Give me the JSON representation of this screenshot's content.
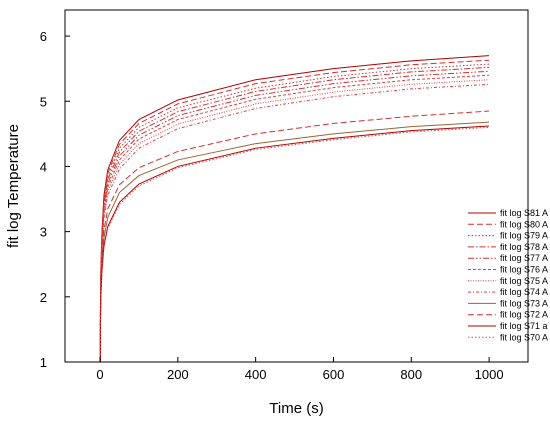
{
  "chart_data": {
    "type": "line",
    "title": "",
    "xlabel": "Time (s)",
    "ylabel": "fit log Temperature",
    "xlim": [
      -90,
      1100
    ],
    "ylim": [
      1,
      6.4
    ],
    "x_ticks": [
      0,
      200,
      400,
      600,
      800,
      1000
    ],
    "y_ticks": [
      1,
      2,
      3,
      4,
      5,
      6
    ],
    "x_tick_labels": [
      "0",
      "200",
      "400",
      "600",
      "800",
      "1000"
    ],
    "y_tick_labels": [
      "1",
      "2",
      "3",
      "4",
      "5",
      "6"
    ],
    "x": [
      1,
      2,
      5,
      10,
      20,
      50,
      100,
      200,
      400,
      600,
      800,
      1000
    ],
    "legend_position": "right",
    "series": [
      {
        "name": "fit log S81 A",
        "color": "#b30000",
        "dash": "solid",
        "values": [
          1.75,
          2.4,
          3.0,
          3.55,
          3.95,
          4.4,
          4.72,
          5.02,
          5.33,
          5.5,
          5.62,
          5.7
        ]
      },
      {
        "name": "fit log S80 A",
        "color": "#cc3333",
        "dash": "dash",
        "values": [
          1.72,
          2.35,
          2.95,
          3.5,
          3.9,
          4.34,
          4.66,
          4.96,
          5.27,
          5.44,
          5.56,
          5.63
        ]
      },
      {
        "name": "fit log S79 A",
        "color": "#cc3333",
        "dash": "dot",
        "values": [
          1.7,
          2.32,
          2.9,
          3.45,
          3.85,
          4.28,
          4.6,
          4.9,
          5.2,
          5.38,
          5.5,
          5.57
        ]
      },
      {
        "name": "fit log S78 A",
        "color": "#cc3333",
        "dash": "dashdot",
        "values": [
          1.68,
          2.3,
          2.87,
          3.4,
          3.8,
          4.22,
          4.54,
          4.84,
          5.15,
          5.33,
          5.45,
          5.52
        ]
      },
      {
        "name": "fit log S77 A",
        "color": "#cc3333",
        "dash": "dashdotdot",
        "values": [
          1.66,
          2.27,
          2.83,
          3.35,
          3.74,
          4.16,
          4.48,
          4.78,
          5.09,
          5.27,
          5.39,
          5.46
        ]
      },
      {
        "name": "fit log S76 A",
        "color": "#dd4444",
        "dash": "shortdash",
        "values": [
          1.64,
          2.24,
          2.79,
          3.3,
          3.68,
          4.1,
          4.42,
          4.72,
          5.03,
          5.21,
          5.33,
          5.4
        ]
      },
      {
        "name": "fit log S75 A",
        "color": "#dd4444",
        "dash": "shortdot",
        "values": [
          1.62,
          2.21,
          2.75,
          3.25,
          3.62,
          4.03,
          4.35,
          4.65,
          4.96,
          5.14,
          5.26,
          5.33
        ]
      },
      {
        "name": "fit log S74 A",
        "color": "#dd4444",
        "dash": "shortdashdot",
        "values": [
          1.6,
          2.18,
          2.71,
          3.2,
          3.56,
          3.96,
          4.28,
          4.58,
          4.89,
          5.07,
          5.19,
          5.26
        ]
      },
      {
        "name": "fit log S73 A",
        "color": "#996633",
        "dash": "solid",
        "values": [
          1.55,
          2.05,
          2.5,
          2.9,
          3.22,
          3.6,
          3.86,
          4.1,
          4.35,
          4.5,
          4.61,
          4.68
        ]
      },
      {
        "name": "fit log S72 A",
        "color": "#cc3333",
        "dash": "dash",
        "values": [
          1.58,
          2.12,
          2.6,
          3.02,
          3.35,
          3.72,
          3.98,
          4.23,
          4.5,
          4.66,
          4.77,
          4.85
        ]
      },
      {
        "name": "fit log S71 a",
        "color": "#b30000",
        "dash": "solid",
        "values": [
          1.5,
          1.98,
          2.4,
          2.78,
          3.08,
          3.45,
          3.73,
          4.0,
          4.28,
          4.43,
          4.55,
          4.62
        ]
      },
      {
        "name": "fit log S70 A",
        "color": "#dd4444",
        "dash": "dot",
        "values": [
          1.49,
          1.96,
          2.38,
          2.75,
          3.05,
          3.42,
          3.7,
          3.98,
          4.26,
          4.41,
          4.53,
          4.6
        ]
      }
    ]
  }
}
